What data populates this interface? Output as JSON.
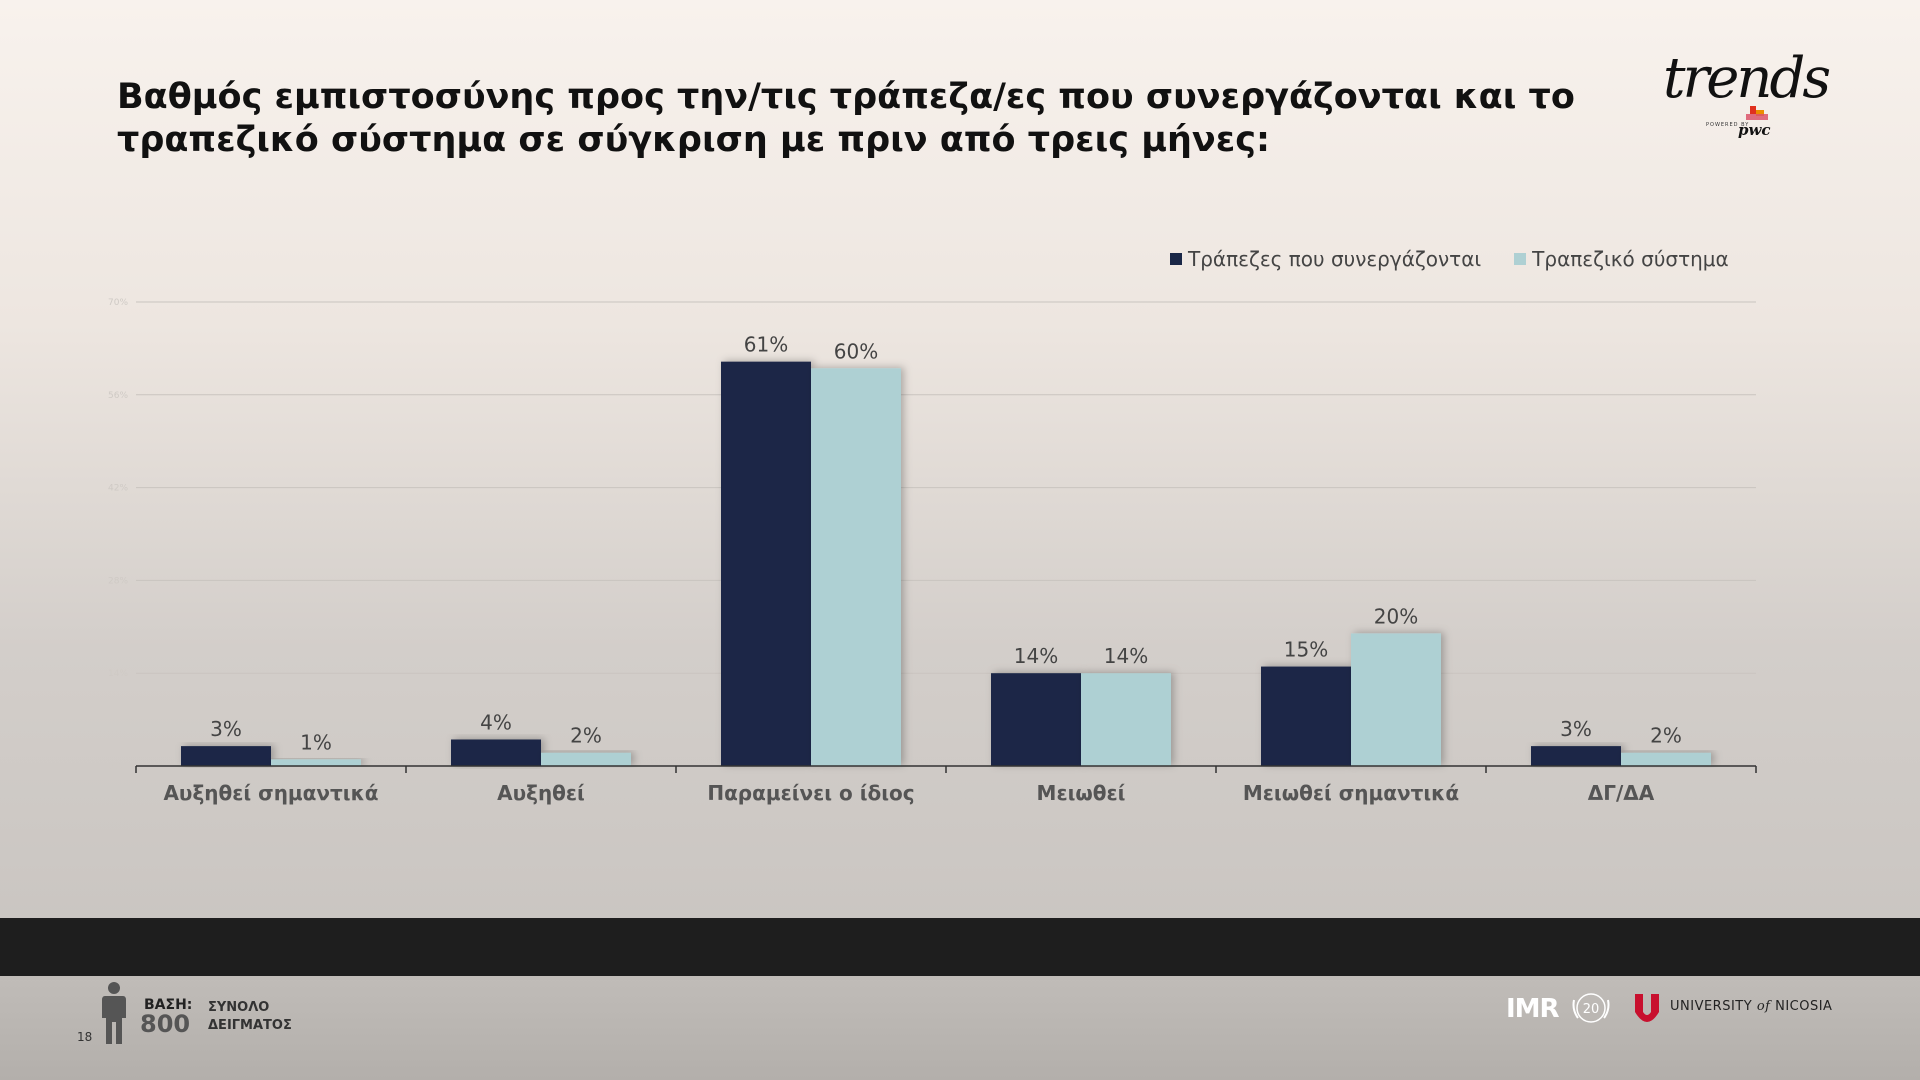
{
  "slide": {
    "title_lines": [
      "Βαθμός εμπιστοσύνης προς την/τις τράπεζα/ες που συνεργάζονται και το",
      "τραπεζικό σύστημα σε σύγκριση με πριν από τρεις μήνες:"
    ],
    "page_number": "18",
    "brand": {
      "wordmark": "trends",
      "powered_by": "POWERED BY",
      "partner": "pwc"
    }
  },
  "base": {
    "label": "ΒΑΣΗ:",
    "value": "800",
    "description_lines": [
      "ΣΥΝΟΛΟ",
      "ΔΕΙΓΜΑΤΟΣ"
    ]
  },
  "footer": {
    "imr_logo_text": "IMR",
    "imr_anniversary": "20",
    "university_name_before": "UNIVERSITY ",
    "university_name_of": "of",
    "university_name_after": " NICOSIA"
  },
  "colors": {
    "series_1": "#1a2747",
    "series_2": "#aed0d3",
    "title": "#111111",
    "label": "#444444",
    "footer_band": "#1e1e1e"
  },
  "chart_data": {
    "type": "bar",
    "categories": [
      "Αυξηθεί σημαντικά",
      "Αυξηθεί",
      "Παραμείνει ο ίδιος",
      "Μειωθεί",
      "Μειωθεί σημαντικά",
      "ΔΓ/ΔΑ"
    ],
    "series": [
      {
        "name": "Τράπεζες που συνεργάζονται",
        "values": [
          3,
          4,
          61,
          14,
          15,
          3
        ],
        "labels": [
          "3%",
          "4%",
          "61%",
          "14%",
          "15%",
          "3%"
        ],
        "color": "#1a2747"
      },
      {
        "name": "Τραπεζικό σύστημα",
        "values": [
          1,
          2,
          60,
          14,
          20,
          2
        ],
        "labels": [
          "1%",
          "2%",
          "60%",
          "14%",
          "20%",
          "2%"
        ],
        "color": "#aed0d3"
      }
    ],
    "y_ticks": [
      0,
      14,
      28,
      42,
      56,
      70
    ],
    "y_tick_labels": [
      "0%",
      "14%",
      "28%",
      "42%",
      "56%",
      "70%"
    ],
    "ylim": [
      0,
      70
    ],
    "grid": true,
    "legend": "top-right"
  }
}
